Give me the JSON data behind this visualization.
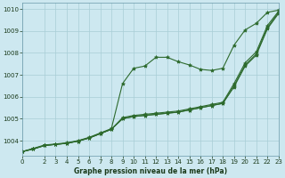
{
  "xlabel": "Graphe pression niveau de la mer (hPa)",
  "x": [
    0,
    1,
    2,
    3,
    4,
    5,
    6,
    7,
    8,
    9,
    10,
    11,
    12,
    13,
    14,
    15,
    16,
    17,
    18,
    19,
    20,
    21,
    22,
    23
  ],
  "series": [
    [
      1003.5,
      1003.65,
      1003.8,
      1003.85,
      1003.9,
      1004.0,
      1004.15,
      1004.35,
      1004.55,
      1006.6,
      1007.3,
      1007.4,
      1007.8,
      1007.8,
      1007.6,
      1007.45,
      1007.25,
      1007.2,
      1007.3,
      1008.35,
      1009.05,
      1009.35,
      1009.85,
      1009.95
    ],
    [
      1003.5,
      1003.62,
      1003.78,
      1003.83,
      1003.88,
      1003.98,
      1004.12,
      1004.32,
      1004.52,
      1005.05,
      1005.15,
      1005.2,
      1005.25,
      1005.3,
      1005.35,
      1005.45,
      1005.55,
      1005.65,
      1005.75,
      1006.6,
      1007.55,
      1008.05,
      1009.25,
      1009.9
    ],
    [
      1003.5,
      1003.62,
      1003.78,
      1003.83,
      1003.88,
      1003.98,
      1004.12,
      1004.32,
      1004.52,
      1005.0,
      1005.1,
      1005.15,
      1005.2,
      1005.25,
      1005.3,
      1005.4,
      1005.5,
      1005.6,
      1005.7,
      1006.5,
      1007.45,
      1007.95,
      1009.15,
      1009.85
    ],
    [
      1003.5,
      1003.62,
      1003.78,
      1003.83,
      1003.88,
      1003.98,
      1004.12,
      1004.32,
      1004.52,
      1005.0,
      1005.1,
      1005.15,
      1005.2,
      1005.25,
      1005.3,
      1005.4,
      1005.5,
      1005.6,
      1005.7,
      1006.45,
      1007.4,
      1007.9,
      1009.1,
      1009.8
    ]
  ],
  "line_color": "#2d6a2d",
  "marker": "*",
  "marker_size": 3,
  "ylim": [
    1003.3,
    1010.3
  ],
  "yticks": [
    1004,
    1005,
    1006,
    1007,
    1008,
    1009,
    1010
  ],
  "xlim": [
    0,
    23
  ],
  "xticks": [
    0,
    2,
    3,
    4,
    5,
    6,
    7,
    8,
    9,
    10,
    11,
    12,
    13,
    14,
    15,
    16,
    17,
    18,
    19,
    20,
    21,
    22,
    23
  ],
  "bg_color": "#cde8f0",
  "grid_color": "#a8cdd6",
  "line_width": 0.8,
  "tick_fontsize": 5.0,
  "label_fontsize": 5.5
}
